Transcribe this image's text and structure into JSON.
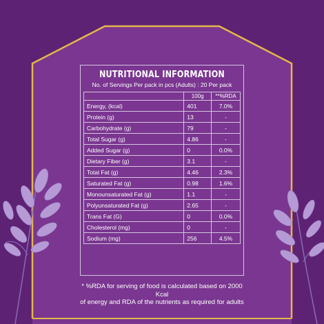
{
  "title": "NUTRITIONAL INFORMATION",
  "subtitle": "No. of Servings Per pack in pcs (Adults) : 20 Per pack",
  "columns": {
    "per100g": "100g",
    "rda": "**%RDA"
  },
  "rows": [
    {
      "name": "Energy, (kcal)",
      "per100g": "401",
      "rda": "7.0%"
    },
    {
      "name": "Protein (g)",
      "per100g": "13",
      "rda": "-"
    },
    {
      "name": "Carbohydrate (g)",
      "per100g": "79",
      "rda": "-"
    },
    {
      "name": "Total Sugar (g)",
      "per100g": "4.86",
      "rda": "-"
    },
    {
      "name": "Added Sugar (g)",
      "per100g": "0",
      "rda": "0.0%"
    },
    {
      "name": "Dietary Fiber (g)",
      "per100g": "3.1",
      "rda": "-"
    },
    {
      "name": "Total Fat (g)",
      "per100g": "4.46",
      "rda": "2.3%"
    },
    {
      "name": "Saturated Fat (g)",
      "per100g": "0.98",
      "rda": "1.6%"
    },
    {
      "name": "Monounsaturated Fat (g)",
      "per100g": "1.1",
      "rda": "-"
    },
    {
      "name": "Polyunsaturated Fat (g)",
      "per100g": "2.65",
      "rda": "-"
    },
    {
      "name": "Trans Fat (G)",
      "per100g": "0",
      "rda": "0.0%"
    },
    {
      "name": "Cholesterol (mg)",
      "per100g": "0",
      "rda": "-"
    },
    {
      "name": "Sodium (mg)",
      "per100g": "256",
      "rda": "4.5%"
    }
  ],
  "footnote": {
    "line1": "* %RDA  for serving of food is calculated based on 2000 Kcal",
    "line2": "of energy and RDA of the nutrients as required for adults"
  },
  "colors": {
    "background": "#5e2275",
    "panel": "#7a3690",
    "frame_gold": "#e3b84a",
    "leaf_lavender": "#b69ad6"
  }
}
